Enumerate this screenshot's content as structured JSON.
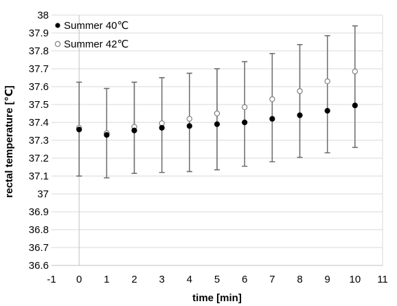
{
  "chart_data": {
    "type": "scatter",
    "xlabel": "time [min]",
    "ylabel": "rectal temperature [℃]",
    "xlim": [
      -1,
      11
    ],
    "ylim": [
      36.6,
      38
    ],
    "x_ticks": [
      -1,
      0,
      1,
      2,
      3,
      4,
      5,
      6,
      7,
      8,
      9,
      10,
      11
    ],
    "y_ticks": [
      36.6,
      36.7,
      36.8,
      36.9,
      37,
      37.1,
      37.2,
      37.3,
      37.4,
      37.5,
      37.6,
      37.7,
      37.8,
      37.9,
      38
    ],
    "grid": "horizontal",
    "legend_position": "top-left",
    "series": [
      {
        "name": "Summer 40℃",
        "marker": "filled-circle",
        "color": "#000000",
        "x": [
          0,
          1,
          2,
          3,
          4,
          5,
          6,
          7,
          8,
          9,
          10
        ],
        "y": [
          37.36,
          37.33,
          37.355,
          37.37,
          37.38,
          37.39,
          37.4,
          37.42,
          37.44,
          37.465,
          37.495
        ],
        "err_low": [
          37.1,
          37.09,
          37.115,
          37.12,
          37.125,
          37.135,
          37.155,
          37.18,
          37.205,
          37.23,
          37.26
        ],
        "err_high": [
          37.625,
          37.59,
          37.625,
          37.65,
          37.675,
          37.7,
          37.74,
          37.785,
          37.835,
          37.885,
          37.94
        ]
      },
      {
        "name": "Summer 42℃",
        "marker": "open-circle",
        "color": "#808080",
        "x": [
          0,
          1,
          2,
          3,
          4,
          5,
          6,
          7,
          8,
          9,
          10
        ],
        "y": [
          37.37,
          37.34,
          37.375,
          37.395,
          37.42,
          37.45,
          37.485,
          37.53,
          37.575,
          37.63,
          37.685
        ],
        "err_low": [
          37.1,
          37.09,
          37.115,
          37.12,
          37.125,
          37.135,
          37.155,
          37.18,
          37.205,
          37.23,
          37.26
        ],
        "err_high": [
          37.625,
          37.59,
          37.625,
          37.65,
          37.675,
          37.7,
          37.74,
          37.785,
          37.835,
          37.885,
          37.94
        ]
      }
    ]
  }
}
